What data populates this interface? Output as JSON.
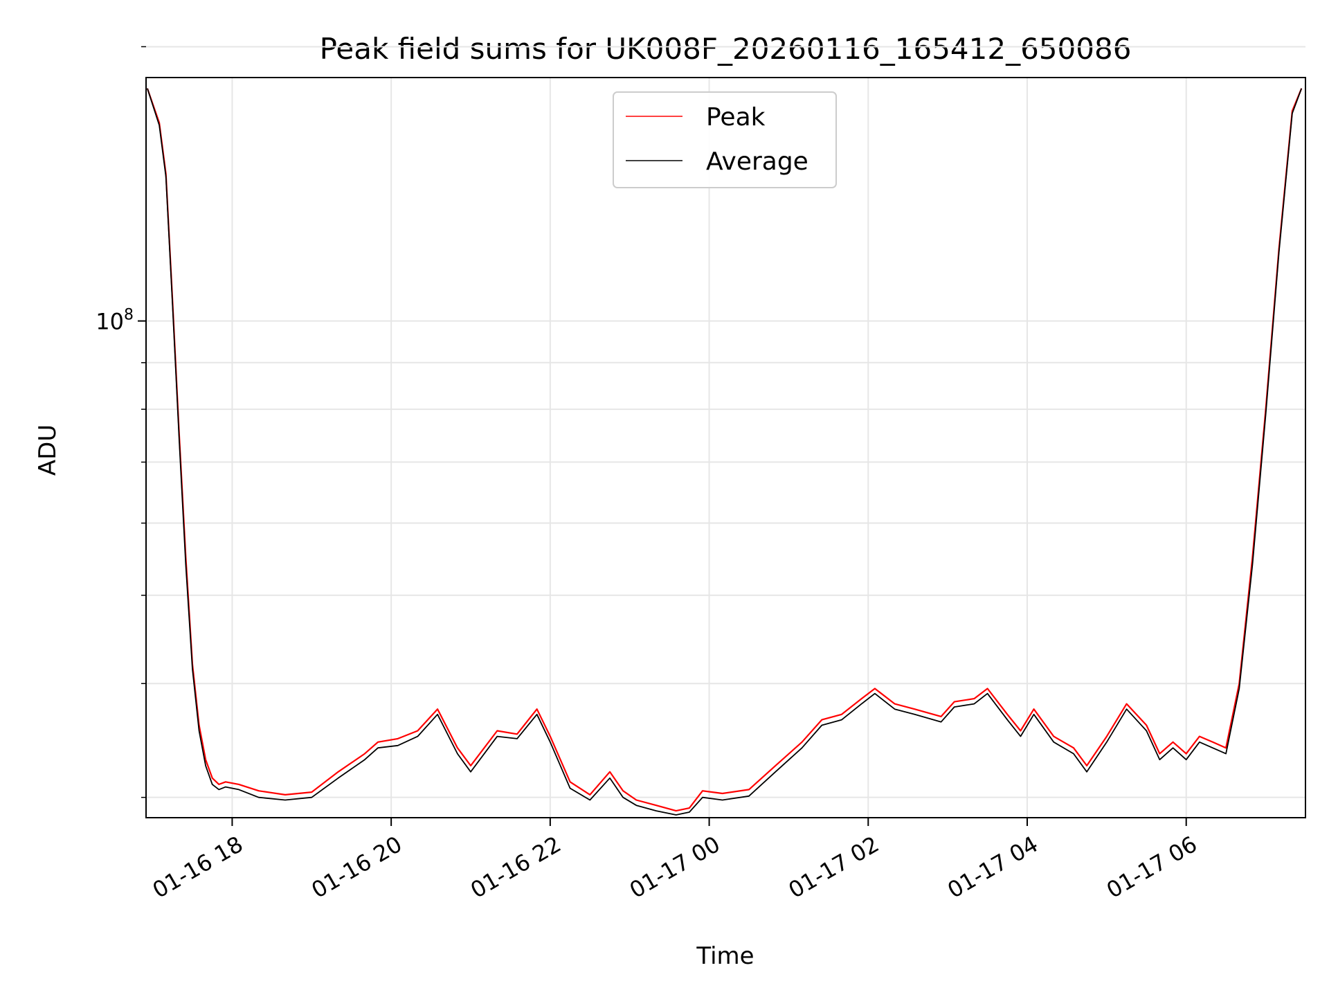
{
  "chart_data": {
    "type": "line",
    "title": "Peak field sums for UK008F_20260116_165412_650086",
    "xlabel": "Time",
    "ylabel": "ADU",
    "yscale": "log",
    "grid": true,
    "legend_position": "top-center",
    "xlim": [
      "2026-01-16 16:55",
      "2026-01-17 07:30"
    ],
    "ylim": [
      28500000,
      185000000
    ],
    "x_ticks": [
      {
        "value": "2026-01-16 18:00",
        "label": "01-16 18"
      },
      {
        "value": "2026-01-16 20:00",
        "label": "01-16 20"
      },
      {
        "value": "2026-01-16 22:00",
        "label": "01-16 22"
      },
      {
        "value": "2026-01-17 00:00",
        "label": "01-17 00"
      },
      {
        "value": "2026-01-17 02:00",
        "label": "01-17 02"
      },
      {
        "value": "2026-01-17 04:00",
        "label": "01-17 04"
      },
      {
        "value": "2026-01-17 06:00",
        "label": "01-17 06"
      }
    ],
    "y_major_ticks": [
      {
        "value": 100000000,
        "base": "10",
        "exp": "8"
      }
    ],
    "y_minor_ticks": [
      30000000,
      40000000,
      50000000,
      60000000,
      70000000,
      80000000,
      90000000,
      200000000
    ],
    "series": [
      {
        "name": "Peak",
        "color": "#ff0000",
        "x": [
          "2026-01-16 16:56",
          "2026-01-16 17:05",
          "2026-01-16 17:10",
          "2026-01-16 17:15",
          "2026-01-16 17:20",
          "2026-01-16 17:25",
          "2026-01-16 17:30",
          "2026-01-16 17:35",
          "2026-01-16 17:40",
          "2026-01-16 17:45",
          "2026-01-16 17:50",
          "2026-01-16 17:55",
          "2026-01-16 18:05",
          "2026-01-16 18:20",
          "2026-01-16 18:40",
          "2026-01-16 19:00",
          "2026-01-16 19:20",
          "2026-01-16 19:40",
          "2026-01-16 19:50",
          "2026-01-16 20:05",
          "2026-01-16 20:20",
          "2026-01-16 20:35",
          "2026-01-16 20:50",
          "2026-01-16 21:00",
          "2026-01-16 21:20",
          "2026-01-16 21:35",
          "2026-01-16 21:50",
          "2026-01-16 22:00",
          "2026-01-16 22:15",
          "2026-01-16 22:30",
          "2026-01-16 22:45",
          "2026-01-16 22:55",
          "2026-01-16 23:05",
          "2026-01-16 23:20",
          "2026-01-16 23:35",
          "2026-01-16 23:45",
          "2026-01-16 23:55",
          "2026-01-17 00:10",
          "2026-01-17 00:30",
          "2026-01-17 00:50",
          "2026-01-17 01:10",
          "2026-01-17 01:25",
          "2026-01-17 01:40",
          "2026-01-17 01:55",
          "2026-01-17 02:05",
          "2026-01-17 02:20",
          "2026-01-17 02:35",
          "2026-01-17 02:55",
          "2026-01-17 03:05",
          "2026-01-17 03:20",
          "2026-01-17 03:30",
          "2026-01-17 03:45",
          "2026-01-17 03:55",
          "2026-01-17 04:05",
          "2026-01-17 04:20",
          "2026-01-17 04:35",
          "2026-01-17 04:45",
          "2026-01-17 05:00",
          "2026-01-17 05:15",
          "2026-01-17 05:30",
          "2026-01-17 05:40",
          "2026-01-17 05:50",
          "2026-01-17 06:00",
          "2026-01-17 06:10",
          "2026-01-17 06:20",
          "2026-01-17 06:30",
          "2026-01-17 06:40",
          "2026-01-17 06:50",
          "2026-01-17 07:00",
          "2026-01-17 07:10",
          "2026-01-17 07:20",
          "2026-01-17 07:27"
        ],
        "y": [
          180000000,
          165000000,
          145000000,
          105000000,
          75000000,
          55000000,
          42000000,
          36000000,
          33000000,
          31500000,
          31000000,
          31200000,
          31000000,
          30500000,
          30200000,
          30400000,
          32000000,
          33500000,
          34500000,
          34800000,
          35500000,
          37500000,
          34000000,
          32500000,
          35500000,
          35200000,
          37500000,
          35000000,
          31200000,
          30200000,
          32000000,
          30500000,
          29800000,
          29400000,
          29000000,
          29200000,
          30500000,
          30300000,
          30600000,
          32500000,
          34500000,
          36500000,
          37000000,
          38500000,
          39500000,
          38000000,
          37500000,
          36800000,
          38200000,
          38500000,
          39500000,
          37000000,
          35500000,
          37500000,
          35000000,
          34000000,
          32500000,
          35000000,
          38000000,
          36000000,
          33500000,
          34500000,
          33500000,
          35000000,
          34500000,
          34000000,
          40000000,
          55000000,
          80000000,
          120000000,
          170000000,
          180000000
        ]
      },
      {
        "name": "Average",
        "color": "#000000",
        "x": [
          "2026-01-16 16:56",
          "2026-01-16 17:05",
          "2026-01-16 17:10",
          "2026-01-16 17:15",
          "2026-01-16 17:20",
          "2026-01-16 17:25",
          "2026-01-16 17:30",
          "2026-01-16 17:35",
          "2026-01-16 17:40",
          "2026-01-16 17:45",
          "2026-01-16 17:50",
          "2026-01-16 17:55",
          "2026-01-16 18:05",
          "2026-01-16 18:20",
          "2026-01-16 18:40",
          "2026-01-16 19:00",
          "2026-01-16 19:20",
          "2026-01-16 19:40",
          "2026-01-16 19:50",
          "2026-01-16 20:05",
          "2026-01-16 20:20",
          "2026-01-16 20:35",
          "2026-01-16 20:50",
          "2026-01-16 21:00",
          "2026-01-16 21:20",
          "2026-01-16 21:35",
          "2026-01-16 21:50",
          "2026-01-16 22:00",
          "2026-01-16 22:15",
          "2026-01-16 22:30",
          "2026-01-16 22:45",
          "2026-01-16 22:55",
          "2026-01-16 23:05",
          "2026-01-16 23:20",
          "2026-01-16 23:35",
          "2026-01-16 23:45",
          "2026-01-16 23:55",
          "2026-01-17 00:10",
          "2026-01-17 00:30",
          "2026-01-17 00:50",
          "2026-01-17 01:10",
          "2026-01-17 01:25",
          "2026-01-17 01:40",
          "2026-01-17 01:55",
          "2026-01-17 02:05",
          "2026-01-17 02:20",
          "2026-01-17 02:35",
          "2026-01-17 02:55",
          "2026-01-17 03:05",
          "2026-01-17 03:20",
          "2026-01-17 03:30",
          "2026-01-17 03:45",
          "2026-01-17 03:55",
          "2026-01-17 04:05",
          "2026-01-17 04:20",
          "2026-01-17 04:35",
          "2026-01-17 04:45",
          "2026-01-17 05:00",
          "2026-01-17 05:15",
          "2026-01-17 05:30",
          "2026-01-17 05:40",
          "2026-01-17 05:50",
          "2026-01-17 06:00",
          "2026-01-17 06:10",
          "2026-01-17 06:20",
          "2026-01-17 06:30",
          "2026-01-17 06:40",
          "2026-01-17 06:50",
          "2026-01-17 07:00",
          "2026-01-17 07:10",
          "2026-01-17 07:20",
          "2026-01-17 07:27"
        ],
        "y": [
          180000000,
          164000000,
          144000000,
          104000000,
          74000000,
          54000000,
          41500000,
          35500000,
          32500000,
          31000000,
          30600000,
          30800000,
          30600000,
          30000000,
          29800000,
          30000000,
          31500000,
          33000000,
          34000000,
          34200000,
          35000000,
          37000000,
          33500000,
          32000000,
          35000000,
          34800000,
          37000000,
          34500000,
          30700000,
          29800000,
          31500000,
          30000000,
          29400000,
          29000000,
          28700000,
          28900000,
          30000000,
          29800000,
          30100000,
          32000000,
          34000000,
          36000000,
          36500000,
          38000000,
          39000000,
          37500000,
          37000000,
          36300000,
          37700000,
          38000000,
          39000000,
          36500000,
          35000000,
          37000000,
          34500000,
          33500000,
          32000000,
          34500000,
          37500000,
          35500000,
          33000000,
          34000000,
          33000000,
          34500000,
          34000000,
          33500000,
          39500000,
          54000000,
          79000000,
          119000000,
          169000000,
          180000000
        ]
      }
    ]
  }
}
